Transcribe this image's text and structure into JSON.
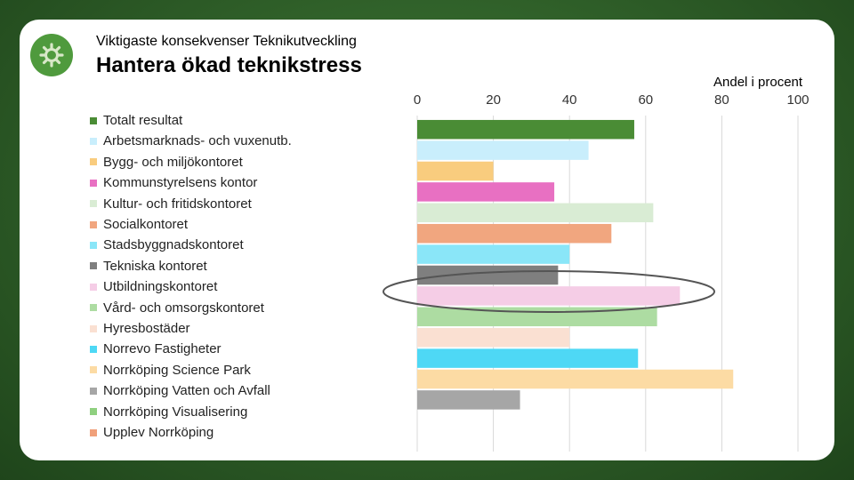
{
  "header": {
    "subtitle": "Viktigaste konsekvenser Teknikutveckling",
    "title": "Hantera ökad teknikstress",
    "icon": "gear-icon"
  },
  "chart_data": {
    "type": "bar",
    "orientation": "horizontal",
    "title": "Hantera ökad teknikstress",
    "xlabel": "Andel i procent",
    "xlim": [
      0,
      100
    ],
    "xticks": [
      0,
      20,
      40,
      60,
      80,
      100
    ],
    "grid": true,
    "legend_position": "left",
    "highlighted_category": "Utbildningskontoret",
    "categories": [
      "Totalt resultat",
      "Arbetsmarknads- och vuxenutb.",
      "Bygg- och miljökontoret",
      "Kommunstyrelsens kontor",
      "Kultur- och fritidskontoret",
      "Socialkontoret",
      "Stadsbyggnadskontoret",
      "Tekniska kontoret",
      "Utbildningskontoret",
      "Vård- och omsorgskontoret",
      "Hyresbostäder",
      "Norrevo Fastigheter",
      "Norrköping Science Park",
      "Norrköping Vatten och Avfall",
      "Norrköping Visualisering",
      "Upplev Norrköping"
    ],
    "values": [
      57,
      45,
      20,
      36,
      62,
      51,
      40,
      37,
      69,
      63,
      40,
      58,
      83,
      27,
      null,
      null
    ],
    "colors": [
      "#4a8c35",
      "#c9eefc",
      "#f9cc7e",
      "#e870c2",
      "#d9ecd4",
      "#f1a67f",
      "#8ae6f8",
      "#7f7f7f",
      "#f5cde6",
      "#addca2",
      "#fae0d2",
      "#4ed8f5",
      "#fcdba4",
      "#a6a6a6",
      "#8fd07f",
      "#f0a07a"
    ]
  }
}
